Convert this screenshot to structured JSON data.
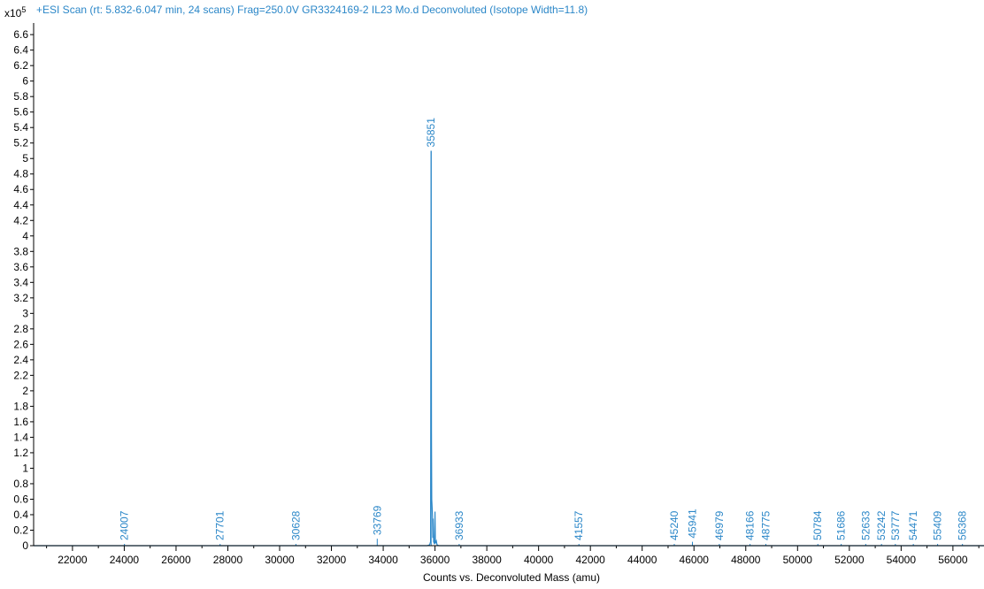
{
  "chart_data": {
    "type": "line",
    "title": "+ESI Scan (rt: 5.832-6.047 min, 24 scans) Frag=250.0V GR3324169-2 IL23 Mo.d  Deconvoluted (Isotope Width=11.8)",
    "y_multiplier_base": "x10",
    "y_multiplier_exp": "5",
    "xlabel": "Counts vs. Deconvoluted Mass (amu)",
    "xlim": [
      20500,
      57200
    ],
    "ylim": [
      0,
      6.75
    ],
    "x_ticks": [
      22000,
      24000,
      26000,
      28000,
      30000,
      32000,
      34000,
      36000,
      38000,
      40000,
      42000,
      44000,
      46000,
      48000,
      50000,
      52000,
      54000,
      56000
    ],
    "y_ticks": [
      0,
      0.2,
      0.4,
      0.6,
      0.8,
      1,
      1.2,
      1.4,
      1.6,
      1.8,
      2,
      2.2,
      2.4,
      2.6,
      2.8,
      3,
      3.2,
      3.4,
      3.6,
      3.8,
      4,
      4.2,
      4.4,
      4.6,
      4.8,
      5,
      5.2,
      5.4,
      5.6,
      5.8,
      6,
      6.2,
      6.4,
      6.6
    ],
    "line_color": "#2b87c8",
    "peaks": [
      {
        "x": 24007,
        "y": 0.012,
        "label": "24007"
      },
      {
        "x": 27701,
        "y": 0.012,
        "label": "27701"
      },
      {
        "x": 30628,
        "y": 0.012,
        "label": "30628"
      },
      {
        "x": 33769,
        "y": 0.09,
        "label": "33769"
      },
      {
        "x": 35851,
        "y": 5.1,
        "label": "35851"
      },
      {
        "x": 36933,
        "y": 0.012,
        "label": "36933"
      },
      {
        "x": 41557,
        "y": 0.012,
        "label": "41557"
      },
      {
        "x": 45240,
        "y": 0.012,
        "label": "45240"
      },
      {
        "x": 45941,
        "y": 0.05,
        "label": "45941"
      },
      {
        "x": 46979,
        "y": 0.012,
        "label": "46979"
      },
      {
        "x": 48166,
        "y": 0.012,
        "label": "48166"
      },
      {
        "x": 48775,
        "y": 0.012,
        "label": "48775"
      },
      {
        "x": 50784,
        "y": 0.012,
        "label": "50784"
      },
      {
        "x": 51686,
        "y": 0.012,
        "label": "51686"
      },
      {
        "x": 52633,
        "y": 0.012,
        "label": "52633"
      },
      {
        "x": 53242,
        "y": 0.012,
        "label": "53242"
      },
      {
        "x": 53777,
        "y": 0.012,
        "label": "53777"
      },
      {
        "x": 54471,
        "y": 0.012,
        "label": "54471"
      },
      {
        "x": 55409,
        "y": 0.012,
        "label": "55409"
      },
      {
        "x": 56368,
        "y": 0.012,
        "label": "56368"
      }
    ],
    "spectrum": [
      [
        20500,
        0.0
      ],
      [
        35700,
        0.0
      ],
      [
        35790,
        0.01
      ],
      [
        35830,
        0.05
      ],
      [
        35851,
        5.1
      ],
      [
        35862,
        1.45
      ],
      [
        35875,
        0.6
      ],
      [
        35890,
        0.48
      ],
      [
        35905,
        0.38
      ],
      [
        35915,
        0.1
      ],
      [
        35930,
        0.35
      ],
      [
        35945,
        0.05
      ],
      [
        35985,
        0.02
      ],
      [
        36000,
        0.44
      ],
      [
        36015,
        0.03
      ],
      [
        36050,
        0.06
      ],
      [
        36080,
        0.01
      ],
      [
        36150,
        0.0
      ],
      [
        57200,
        0.0
      ]
    ]
  }
}
